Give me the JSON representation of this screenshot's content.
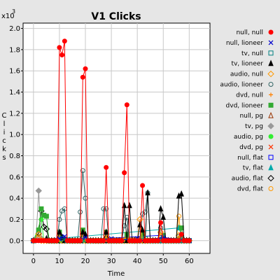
{
  "chart_data": {
    "type": "line",
    "title": "V1 Clicks",
    "xlabel": "Time",
    "ylabel": "Clicks",
    "y_multiplier_label": "x10",
    "y_multiplier_exp": "3",
    "xlim": [
      -4,
      68
    ],
    "ylim": [
      -0.12,
      2.05
    ],
    "x_ticks": [
      0,
      10,
      20,
      30,
      40,
      50,
      60
    ],
    "y_ticks": [
      0.0,
      0.2,
      0.4,
      0.6,
      0.8,
      1.0,
      1.2,
      1.4,
      1.6,
      1.8,
      2.0
    ],
    "y_tick_labels": [
      "0.0",
      "0.2",
      "0.4",
      "0.6",
      "0.8",
      "1.0",
      "1.2",
      "1.4",
      "1.6",
      "1.8",
      "2.0"
    ],
    "grid": true,
    "legend_position": "right",
    "series": [
      {
        "name": "null, null",
        "color": "#ff0000",
        "marker": "dot",
        "points": [
          [
            0,
            0
          ],
          [
            9,
            0
          ],
          [
            10,
            1.82
          ],
          [
            11,
            1.75
          ],
          [
            12,
            1.88
          ],
          [
            13,
            0
          ],
          [
            18,
            0
          ],
          [
            19,
            1.54
          ],
          [
            20,
            1.62
          ],
          [
            21,
            0
          ],
          [
            27,
            0
          ],
          [
            28,
            0.69
          ],
          [
            29,
            0
          ],
          [
            34,
            0
          ],
          [
            35,
            0.64
          ],
          [
            36,
            1.28
          ],
          [
            37,
            0
          ],
          [
            41,
            0
          ],
          [
            42,
            0.52
          ],
          [
            43,
            0
          ],
          [
            48,
            0
          ],
          [
            49,
            0.17
          ],
          [
            50,
            0
          ],
          [
            56,
            0
          ],
          [
            57,
            0.06
          ],
          [
            58,
            0
          ],
          [
            60,
            0
          ]
        ]
      },
      {
        "name": "null, lioneer",
        "color": "#0000cc",
        "marker": "x",
        "points": [
          [
            0,
            0
          ],
          [
            10,
            0.02
          ],
          [
            12,
            0.04
          ],
          [
            14,
            0
          ],
          [
            20,
            0.03
          ],
          [
            22,
            0
          ],
          [
            30,
            0.02
          ],
          [
            32,
            0
          ],
          [
            40,
            0.02
          ],
          [
            42,
            0
          ],
          [
            50,
            0.03
          ],
          [
            60,
            0
          ]
        ]
      },
      {
        "name": "tv, null",
        "color": "#008080",
        "marker": "sq",
        "points": [
          [
            0,
            0
          ],
          [
            11,
            0.02
          ],
          [
            13,
            0
          ],
          [
            20,
            0.01
          ],
          [
            22,
            0
          ],
          [
            43,
            0.02
          ],
          [
            45,
            0
          ],
          [
            60,
            0
          ]
        ]
      },
      {
        "name": "tv, lioneer",
        "color": "#000000",
        "marker": "tri",
        "points": [
          [
            0,
            0
          ],
          [
            5,
            0.02
          ],
          [
            6,
            0
          ],
          [
            9,
            0
          ],
          [
            10,
            0.08
          ],
          [
            11,
            0.03
          ],
          [
            12,
            0
          ],
          [
            18,
            0
          ],
          [
            19,
            0.08
          ],
          [
            20,
            0.06
          ],
          [
            21,
            0
          ],
          [
            27,
            0
          ],
          [
            28,
            0.08
          ],
          [
            29,
            0
          ],
          [
            34,
            0
          ],
          [
            35,
            0.33
          ],
          [
            36,
            0
          ],
          [
            37,
            0.33
          ],
          [
            38,
            0
          ],
          [
            40,
            0
          ],
          [
            41,
            0.15
          ],
          [
            42,
            0.1
          ],
          [
            43,
            0
          ],
          [
            44,
            0.45
          ],
          [
            45,
            0
          ],
          [
            48,
            0
          ],
          [
            49,
            0.3
          ],
          [
            50,
            0.22
          ],
          [
            51,
            0
          ],
          [
            55,
            0
          ],
          [
            56,
            0.42
          ],
          [
            57,
            0.44
          ],
          [
            58,
            0
          ],
          [
            60,
            0
          ]
        ]
      },
      {
        "name": "audio, null",
        "color": "#ff9900",
        "marker": "diamond",
        "points": [
          [
            0,
            0
          ],
          [
            2,
            0.06
          ],
          [
            3,
            0
          ],
          [
            9,
            0
          ],
          [
            10,
            0.04
          ],
          [
            11,
            0
          ],
          [
            18,
            0
          ],
          [
            19,
            0.06
          ],
          [
            20,
            0
          ],
          [
            27,
            0
          ],
          [
            28,
            0.05
          ],
          [
            29,
            0
          ],
          [
            40,
            0
          ],
          [
            41,
            0.2
          ],
          [
            42,
            0
          ],
          [
            48,
            0
          ],
          [
            49,
            0.08
          ],
          [
            50,
            0
          ],
          [
            55,
            0
          ],
          [
            56,
            0.05
          ],
          [
            57,
            0
          ],
          [
            60,
            0
          ]
        ]
      },
      {
        "name": "audio, lioneer",
        "color": "#336666",
        "marker": "circle",
        "points": [
          [
            0,
            0
          ],
          [
            9,
            0
          ],
          [
            10,
            0.2
          ],
          [
            11,
            0.28
          ],
          [
            12,
            0.3
          ],
          [
            13,
            0
          ],
          [
            17,
            0
          ],
          [
            18,
            0.27
          ],
          [
            19,
            0.66
          ],
          [
            20,
            0.4
          ],
          [
            21,
            0
          ],
          [
            26,
            0
          ],
          [
            27,
            0.3
          ],
          [
            28,
            0.3
          ],
          [
            29,
            0
          ],
          [
            34,
            0
          ],
          [
            35,
            0.14
          ],
          [
            36,
            0.22
          ],
          [
            37,
            0
          ],
          [
            41,
            0
          ],
          [
            42,
            0.25
          ],
          [
            43,
            0.27
          ],
          [
            44,
            0.45
          ],
          [
            45,
            0
          ],
          [
            48,
            0
          ],
          [
            49,
            0.12
          ],
          [
            50,
            0.04
          ],
          [
            51,
            0
          ],
          [
            55,
            0
          ],
          [
            56,
            0.04
          ],
          [
            57,
            0
          ],
          [
            60,
            0
          ]
        ]
      },
      {
        "name": "dvd, null",
        "color": "#ff8000",
        "marker": "plus",
        "points": [
          [
            0,
            0
          ],
          [
            3,
            0.02
          ],
          [
            4,
            0
          ],
          [
            20,
            0.02
          ],
          [
            21,
            0
          ],
          [
            36,
            0.02
          ],
          [
            37,
            0
          ],
          [
            60,
            0
          ]
        ]
      },
      {
        "name": "dvd, lioneer",
        "color": "#33aa33",
        "marker": "sqfill",
        "points": [
          [
            0,
            0
          ],
          [
            2,
            0.1
          ],
          [
            3,
            0.3
          ],
          [
            4,
            0.24
          ],
          [
            5,
            0.23
          ],
          [
            6,
            0
          ],
          [
            9,
            0
          ],
          [
            10,
            0.08
          ],
          [
            11,
            0
          ],
          [
            18,
            0
          ],
          [
            19,
            0.1
          ],
          [
            20,
            0
          ],
          [
            27,
            0
          ],
          [
            28,
            0.08
          ],
          [
            29,
            0
          ],
          [
            35,
            0
          ],
          [
            36,
            0.06
          ],
          [
            37,
            0
          ],
          [
            41,
            0
          ],
          [
            42,
            0.06
          ],
          [
            43,
            0
          ],
          [
            49,
            0
          ],
          [
            50,
            0.05
          ],
          [
            51,
            0
          ],
          [
            56,
            0
          ],
          [
            57,
            0.12
          ],
          [
            58,
            0
          ],
          [
            60,
            0
          ]
        ]
      },
      {
        "name": "null, pg",
        "color": "#993300",
        "marker": "tri-open",
        "points": [
          [
            0,
            0
          ],
          [
            10,
            0.02
          ],
          [
            11,
            0
          ],
          [
            28,
            0.02
          ],
          [
            29,
            0
          ],
          [
            60,
            0
          ]
        ]
      },
      {
        "name": "tv, pg",
        "color": "#999999",
        "marker": "diamond-fill",
        "points": [
          [
            0,
            0
          ],
          [
            1,
            0.02
          ],
          [
            2,
            0.47
          ],
          [
            3,
            0.02
          ],
          [
            4,
            0
          ],
          [
            9,
            0
          ],
          [
            10,
            0.05
          ],
          [
            11,
            0
          ],
          [
            60,
            0
          ]
        ]
      },
      {
        "name": "audio, pg",
        "color": "#33ee33",
        "marker": "dot",
        "points": [
          [
            0,
            0
          ],
          [
            3,
            0.2
          ],
          [
            4,
            0
          ],
          [
            60,
            0
          ]
        ]
      },
      {
        "name": "dvd, pg",
        "color": "#ff3300",
        "marker": "x",
        "points": [
          [
            0,
            0
          ],
          [
            12,
            0.02
          ],
          [
            13,
            0
          ],
          [
            36,
            0.02
          ],
          [
            37,
            0
          ],
          [
            60,
            0
          ]
        ]
      },
      {
        "name": "null, flat",
        "color": "#0000ff",
        "marker": "sq",
        "points": [
          [
            0,
            0
          ],
          [
            11,
            0.03
          ],
          [
            12,
            0
          ],
          [
            49,
            0.05
          ],
          [
            50,
            0.03
          ],
          [
            51,
            0
          ],
          [
            60,
            0
          ]
        ]
      },
      {
        "name": "tv, flat",
        "color": "#00aaaa",
        "marker": "tri",
        "points": [
          [
            0,
            0
          ],
          [
            56,
            0.12
          ],
          [
            57,
            0.05
          ],
          [
            58,
            0
          ],
          [
            60,
            0
          ]
        ]
      },
      {
        "name": "audio, flat",
        "color": "#000000",
        "marker": "diamond",
        "points": [
          [
            0,
            0
          ],
          [
            2,
            0.07
          ],
          [
            3,
            0.28
          ],
          [
            4,
            0.13
          ],
          [
            5,
            0.11
          ],
          [
            6,
            0
          ],
          [
            60,
            0
          ]
        ]
      },
      {
        "name": "dvd, flat",
        "color": "#ff9900",
        "marker": "circle",
        "points": [
          [
            0,
            0
          ],
          [
            42,
            0.03
          ],
          [
            43,
            0
          ],
          [
            55,
            0
          ],
          [
            56,
            0.23
          ],
          [
            57,
            0
          ],
          [
            60,
            0
          ]
        ]
      }
    ]
  }
}
